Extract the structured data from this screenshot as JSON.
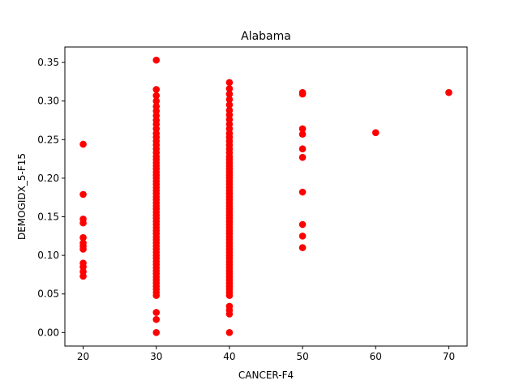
{
  "chart_data": {
    "type": "scatter",
    "title": "Alabama",
    "xlabel": "CANCER-F4",
    "ylabel": "DEMOGIDX_5-F15",
    "xlim": [
      17.5,
      72.5
    ],
    "ylim": [
      -0.0175,
      0.37
    ],
    "xticks": [
      20,
      30,
      40,
      50,
      60,
      70
    ],
    "yticks": [
      0.0,
      0.05,
      0.1,
      0.15,
      0.2,
      0.25,
      0.3,
      0.35
    ],
    "xtick_labels": [
      "20",
      "30",
      "40",
      "50",
      "60",
      "70"
    ],
    "ytick_labels": [
      "0.00",
      "0.05",
      "0.10",
      "0.15",
      "0.20",
      "0.25",
      "0.30",
      "0.35"
    ],
    "grid": false,
    "legend": "none",
    "marker_color": "#ff0000",
    "series": [
      {
        "points": [
          [
            20,
            0.244
          ],
          [
            20,
            0.179
          ],
          [
            20,
            0.147
          ],
          [
            20,
            0.142
          ],
          [
            20,
            0.123
          ],
          [
            20,
            0.116
          ],
          [
            20,
            0.112
          ],
          [
            20,
            0.108
          ],
          [
            20,
            0.09
          ],
          [
            20,
            0.085
          ],
          [
            20,
            0.079
          ],
          [
            20,
            0.073
          ],
          [
            30,
            0.353
          ],
          [
            30,
            0.315
          ],
          [
            30,
            0.307
          ],
          [
            30,
            0.3
          ],
          [
            30,
            0.293
          ],
          [
            30,
            0.287
          ],
          [
            30,
            0.281
          ],
          [
            30,
            0.275
          ],
          [
            30,
            0.27
          ],
          [
            30,
            0.264
          ],
          [
            30,
            0.258
          ],
          [
            30,
            0.253
          ],
          [
            30,
            0.248
          ],
          [
            30,
            0.243
          ],
          [
            30,
            0.238
          ],
          [
            30,
            0.233
          ],
          [
            30,
            0.228
          ],
          [
            30,
            0.224
          ],
          [
            30,
            0.22
          ],
          [
            30,
            0.216
          ],
          [
            30,
            0.212
          ],
          [
            30,
            0.208
          ],
          [
            30,
            0.204
          ],
          [
            30,
            0.2
          ],
          [
            30,
            0.196
          ],
          [
            30,
            0.192
          ],
          [
            30,
            0.188
          ],
          [
            30,
            0.184
          ],
          [
            30,
            0.18
          ],
          [
            30,
            0.176
          ],
          [
            30,
            0.172
          ],
          [
            30,
            0.168
          ],
          [
            30,
            0.164
          ],
          [
            30,
            0.16
          ],
          [
            30,
            0.156
          ],
          [
            30,
            0.152
          ],
          [
            30,
            0.148
          ],
          [
            30,
            0.144
          ],
          [
            30,
            0.14
          ],
          [
            30,
            0.136
          ],
          [
            30,
            0.132
          ],
          [
            30,
            0.128
          ],
          [
            30,
            0.124
          ],
          [
            30,
            0.12
          ],
          [
            30,
            0.116
          ],
          [
            30,
            0.112
          ],
          [
            30,
            0.108
          ],
          [
            30,
            0.104
          ],
          [
            30,
            0.1
          ],
          [
            30,
            0.096
          ],
          [
            30,
            0.092
          ],
          [
            30,
            0.088
          ],
          [
            30,
            0.084
          ],
          [
            30,
            0.08
          ],
          [
            30,
            0.076
          ],
          [
            30,
            0.072
          ],
          [
            30,
            0.068
          ],
          [
            30,
            0.064
          ],
          [
            30,
            0.06
          ],
          [
            30,
            0.056
          ],
          [
            30,
            0.052
          ],
          [
            30,
            0.048
          ],
          [
            30,
            0.026
          ],
          [
            30,
            0.017
          ],
          [
            30,
            0.0
          ],
          [
            40,
            0.324
          ],
          [
            40,
            0.316
          ],
          [
            40,
            0.309
          ],
          [
            40,
            0.302
          ],
          [
            40,
            0.295
          ],
          [
            40,
            0.288
          ],
          [
            40,
            0.282
          ],
          [
            40,
            0.276
          ],
          [
            40,
            0.27
          ],
          [
            40,
            0.264
          ],
          [
            40,
            0.258
          ],
          [
            40,
            0.253
          ],
          [
            40,
            0.248
          ],
          [
            40,
            0.243
          ],
          [
            40,
            0.238
          ],
          [
            40,
            0.233
          ],
          [
            40,
            0.228
          ],
          [
            40,
            0.224
          ],
          [
            40,
            0.22
          ],
          [
            40,
            0.216
          ],
          [
            40,
            0.212
          ],
          [
            40,
            0.208
          ],
          [
            40,
            0.204
          ],
          [
            40,
            0.2
          ],
          [
            40,
            0.196
          ],
          [
            40,
            0.192
          ],
          [
            40,
            0.188
          ],
          [
            40,
            0.184
          ],
          [
            40,
            0.18
          ],
          [
            40,
            0.176
          ],
          [
            40,
            0.172
          ],
          [
            40,
            0.168
          ],
          [
            40,
            0.164
          ],
          [
            40,
            0.16
          ],
          [
            40,
            0.156
          ],
          [
            40,
            0.152
          ],
          [
            40,
            0.148
          ],
          [
            40,
            0.144
          ],
          [
            40,
            0.14
          ],
          [
            40,
            0.136
          ],
          [
            40,
            0.132
          ],
          [
            40,
            0.128
          ],
          [
            40,
            0.124
          ],
          [
            40,
            0.12
          ],
          [
            40,
            0.116
          ],
          [
            40,
            0.112
          ],
          [
            40,
            0.108
          ],
          [
            40,
            0.104
          ],
          [
            40,
            0.1
          ],
          [
            40,
            0.096
          ],
          [
            40,
            0.092
          ],
          [
            40,
            0.088
          ],
          [
            40,
            0.084
          ],
          [
            40,
            0.08
          ],
          [
            40,
            0.076
          ],
          [
            40,
            0.072
          ],
          [
            40,
            0.068
          ],
          [
            40,
            0.064
          ],
          [
            40,
            0.06
          ],
          [
            40,
            0.056
          ],
          [
            40,
            0.052
          ],
          [
            40,
            0.048
          ],
          [
            40,
            0.034
          ],
          [
            40,
            0.029
          ],
          [
            40,
            0.024
          ],
          [
            40,
            0.0
          ],
          [
            50,
            0.311
          ],
          [
            50,
            0.309
          ],
          [
            50,
            0.264
          ],
          [
            50,
            0.257
          ],
          [
            50,
            0.238
          ],
          [
            50,
            0.227
          ],
          [
            50,
            0.182
          ],
          [
            50,
            0.14
          ],
          [
            50,
            0.125
          ],
          [
            50,
            0.11
          ],
          [
            60,
            0.259
          ],
          [
            70,
            0.311
          ]
        ]
      }
    ]
  }
}
